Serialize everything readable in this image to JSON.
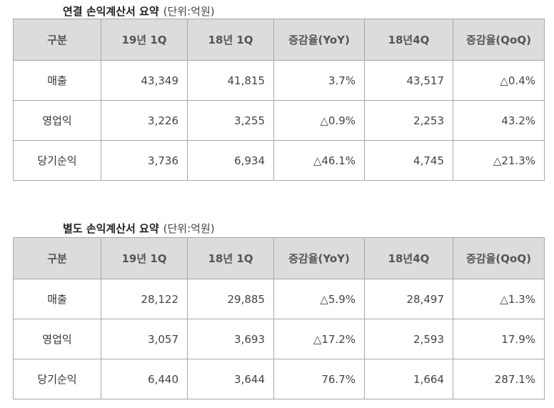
{
  "consolidated": {
    "title": "연결 손익계산서 요약",
    "unit": "(단위:억원)",
    "headers": [
      "구분",
      "19년 1Q",
      "18년 1Q",
      "증감율(YoY)",
      "18년4Q",
      "증감율(QoQ)"
    ],
    "rows": [
      [
        "매출",
        "43,349",
        "41,815",
        "3.7%",
        "43,517",
        "△0.4%"
      ],
      [
        "영업익",
        "3,226",
        "3,255",
        "△0.9%",
        "2,253",
        "43.2%"
      ],
      [
        "당기순익",
        "3,736",
        "6,934",
        "△46.1%",
        "4,745",
        "△21.3%"
      ]
    ]
  },
  "separate": {
    "title": "별도 손익계산서 요약",
    "unit": "(단위:억원)",
    "headers": [
      "구분",
      "19년 1Q",
      "18년 1Q",
      "증감율(YoY)",
      "18년4Q",
      "증감율(QoQ)"
    ],
    "rows": [
      [
        "매출",
        "28,122",
        "29,885",
        "△5.9%",
        "28,497",
        "△1.3%"
      ],
      [
        "영업익",
        "3,057",
        "3,693",
        "△17.2%",
        "2,593",
        "17.9%"
      ],
      [
        "당기순익",
        "6,440",
        "3,644",
        "76.7%",
        "1,664",
        "287.1%"
      ]
    ]
  }
}
